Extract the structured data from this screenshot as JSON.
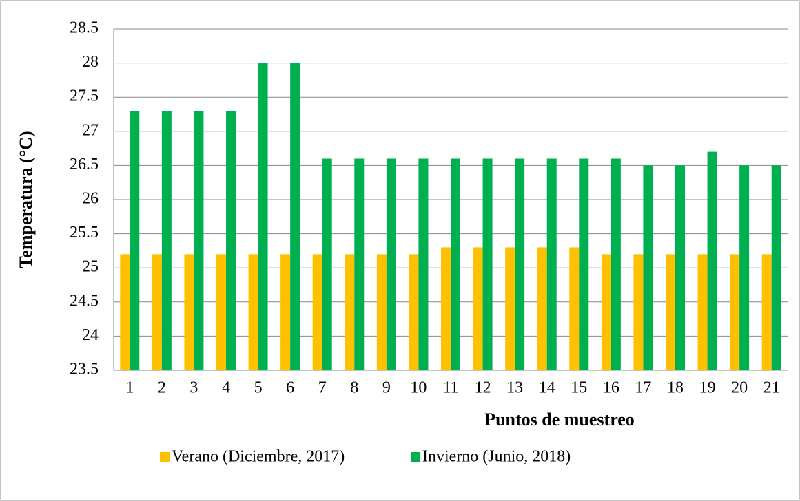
{
  "chart_data": {
    "type": "bar",
    "x_label": "Puntos de muestreo",
    "y_label": "Temperatura (°C)",
    "categories": [
      "1",
      "2",
      "3",
      "4",
      "5",
      "6",
      "7",
      "8",
      "9",
      "10",
      "11",
      "12",
      "13",
      "14",
      "15",
      "16",
      "17",
      "18",
      "19",
      "20",
      "21"
    ],
    "series": [
      {
        "name": "Verano (Diciembre, 2017)",
        "color": "#ffc000",
        "values": [
          25.2,
          25.2,
          25.2,
          25.2,
          25.2,
          25.2,
          25.2,
          25.2,
          25.2,
          25.2,
          25.3,
          25.3,
          25.3,
          25.3,
          25.3,
          25.2,
          25.2,
          25.2,
          25.2,
          25.2,
          25.2
        ]
      },
      {
        "name": "Invierno (Junio, 2018)",
        "color": "#00b050",
        "values": [
          27.3,
          27.3,
          27.3,
          27.3,
          28,
          28,
          26.6,
          26.6,
          26.6,
          26.6,
          26.6,
          26.6,
          26.6,
          26.6,
          26.6,
          26.6,
          26.5,
          26.5,
          26.7,
          26.5,
          26.5
        ]
      }
    ],
    "ylim": [
      23.5,
      28.5
    ],
    "yticks": [
      23.5,
      24,
      24.5,
      25,
      25.5,
      26,
      26.5,
      27,
      27.5,
      28,
      28.5
    ],
    "grid": true,
    "legend": "bottom"
  }
}
